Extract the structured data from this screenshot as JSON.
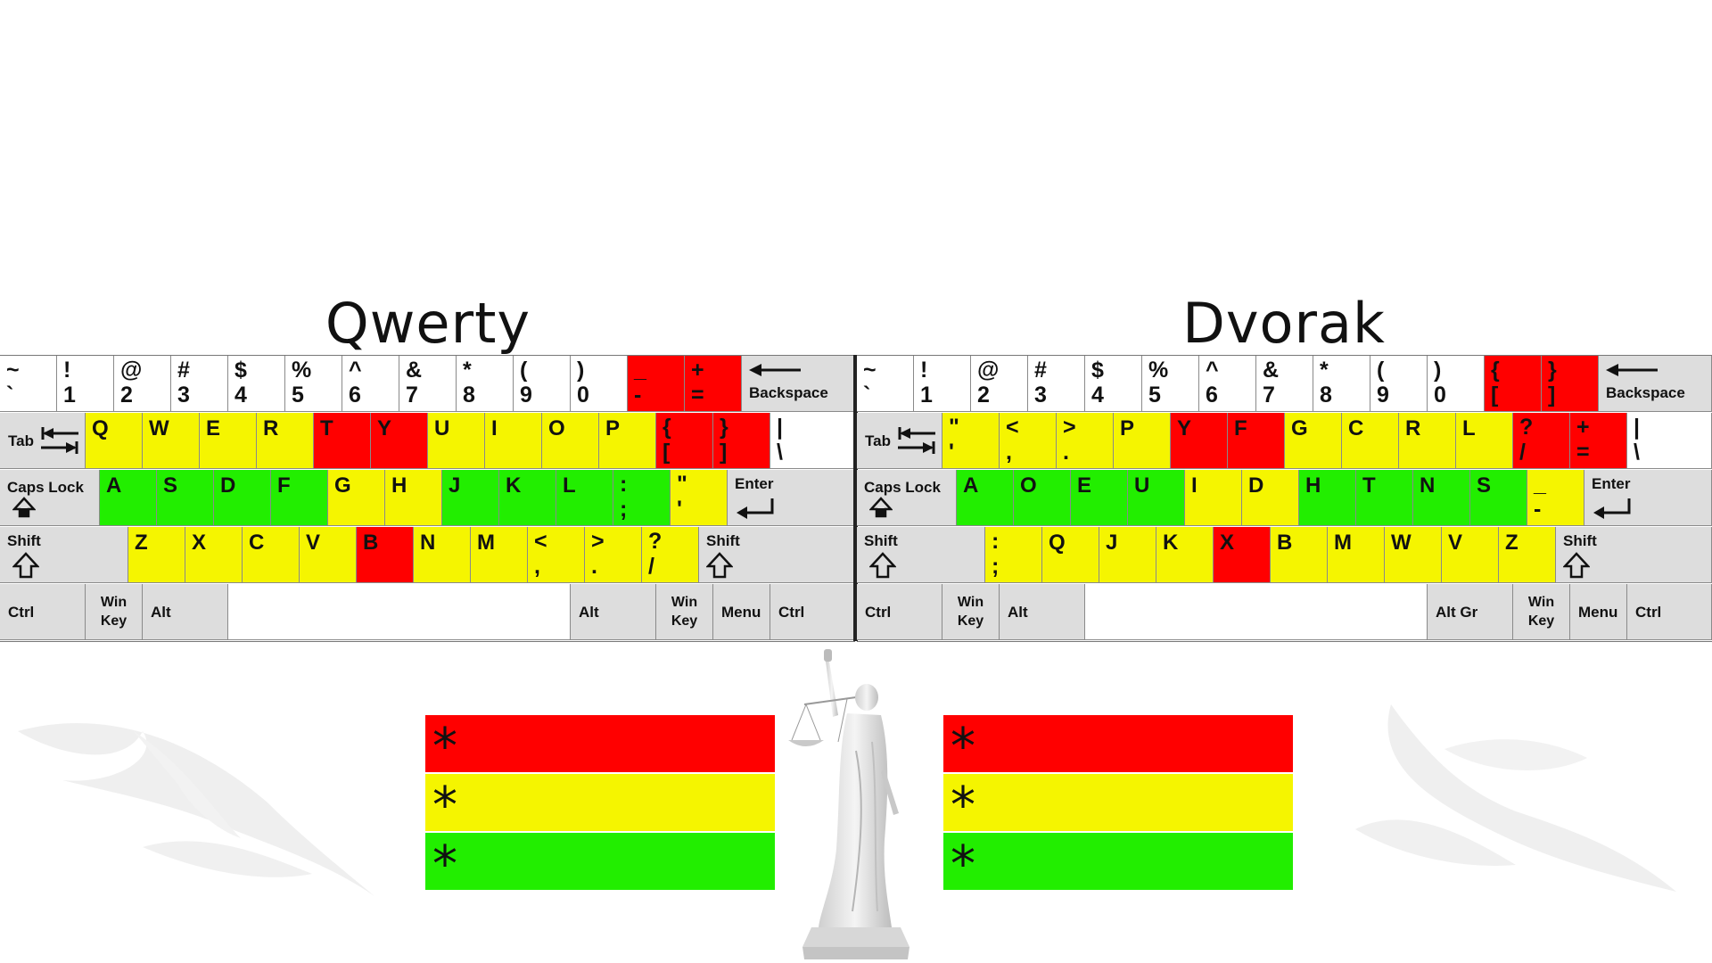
{
  "titles": {
    "left": "Qwerty",
    "right": "Dvorak"
  },
  "colors": {
    "red": "#ff0000",
    "yellow": "#f5f500",
    "green": "#22ee00",
    "gray": "#dddddd",
    "white": "#ffffff"
  },
  "qwerty": {
    "number_row": [
      {
        "top": "~",
        "bot": "`",
        "c": "w"
      },
      {
        "top": "!",
        "bot": "1",
        "c": "w"
      },
      {
        "top": "@",
        "bot": "2",
        "c": "w"
      },
      {
        "top": "#",
        "bot": "3",
        "c": "w"
      },
      {
        "top": "$",
        "bot": "4",
        "c": "w"
      },
      {
        "top": "%",
        "bot": "5",
        "c": "w"
      },
      {
        "top": "^",
        "bot": "6",
        "c": "w"
      },
      {
        "top": "&",
        "bot": "7",
        "c": "w"
      },
      {
        "top": "*",
        "bot": "8",
        "c": "w"
      },
      {
        "top": "(",
        "bot": "9",
        "c": "w"
      },
      {
        "top": ")",
        "bot": "0",
        "c": "w"
      },
      {
        "top": "_",
        "bot": "-",
        "c": "r"
      },
      {
        "top": "+",
        "bot": "=",
        "c": "r"
      }
    ],
    "top_row": [
      {
        "l": "Q",
        "c": "y"
      },
      {
        "l": "W",
        "c": "y"
      },
      {
        "l": "E",
        "c": "y"
      },
      {
        "l": "R",
        "c": "y"
      },
      {
        "l": "T",
        "c": "r"
      },
      {
        "l": "Y",
        "c": "r"
      },
      {
        "l": "U",
        "c": "y"
      },
      {
        "l": "I",
        "c": "y"
      },
      {
        "l": "O",
        "c": "y"
      },
      {
        "l": "P",
        "c": "y"
      }
    ],
    "top_row_sym": [
      {
        "top": "{",
        "bot": "[",
        "c": "r"
      },
      {
        "top": "}",
        "bot": "]",
        "c": "r"
      },
      {
        "top": "|",
        "bot": "\\",
        "c": "w"
      }
    ],
    "home_row": [
      {
        "l": "A",
        "c": "gr"
      },
      {
        "l": "S",
        "c": "gr"
      },
      {
        "l": "D",
        "c": "gr"
      },
      {
        "l": "F",
        "c": "gr"
      },
      {
        "l": "G",
        "c": "y"
      },
      {
        "l": "H",
        "c": "y"
      },
      {
        "l": "J",
        "c": "gr"
      },
      {
        "l": "K",
        "c": "gr"
      },
      {
        "l": "L",
        "c": "gr"
      }
    ],
    "home_row_sym": [
      {
        "top": ":",
        "bot": ";",
        "c": "gr"
      },
      {
        "top": "\"",
        "bot": "'",
        "c": "y"
      }
    ],
    "bottom_row": [
      {
        "l": "Z",
        "c": "y"
      },
      {
        "l": "X",
        "c": "y"
      },
      {
        "l": "C",
        "c": "y"
      },
      {
        "l": "V",
        "c": "y"
      },
      {
        "l": "B",
        "c": "r"
      },
      {
        "l": "N",
        "c": "y"
      },
      {
        "l": "M",
        "c": "y"
      }
    ],
    "bottom_row_sym": [
      {
        "top": "<",
        "bot": ",",
        "c": "y"
      },
      {
        "top": ">",
        "bot": ".",
        "c": "y"
      },
      {
        "top": "?",
        "bot": "/",
        "c": "y"
      }
    ],
    "space_row": {
      "ctrl": "Ctrl",
      "win": "Win",
      "win2": "Key",
      "alt": "Alt",
      "alt_right": "Alt",
      "win_r": "Win",
      "win_r2": "Key",
      "menu": "Menu",
      "ctrl_r": "Ctrl"
    }
  },
  "dvorak": {
    "number_row": [
      {
        "top": "~",
        "bot": "`",
        "c": "w"
      },
      {
        "top": "!",
        "bot": "1",
        "c": "w"
      },
      {
        "top": "@",
        "bot": "2",
        "c": "w"
      },
      {
        "top": "#",
        "bot": "3",
        "c": "w"
      },
      {
        "top": "$",
        "bot": "4",
        "c": "w"
      },
      {
        "top": "%",
        "bot": "5",
        "c": "w"
      },
      {
        "top": "^",
        "bot": "6",
        "c": "w"
      },
      {
        "top": "&",
        "bot": "7",
        "c": "w"
      },
      {
        "top": "*",
        "bot": "8",
        "c": "w"
      },
      {
        "top": "(",
        "bot": "9",
        "c": "w"
      },
      {
        "top": ")",
        "bot": "0",
        "c": "w"
      },
      {
        "top": "{",
        "bot": "[",
        "c": "r"
      },
      {
        "top": "}",
        "bot": "]",
        "c": "r"
      }
    ],
    "top_row_sym": [
      {
        "top": "\"",
        "bot": "'",
        "c": "y"
      },
      {
        "top": "<",
        "bot": ",",
        "c": "y"
      },
      {
        "top": ">",
        "bot": ".",
        "c": "y"
      }
    ],
    "top_row": [
      {
        "l": "P",
        "c": "y"
      },
      {
        "l": "Y",
        "c": "r"
      },
      {
        "l": "F",
        "c": "r"
      },
      {
        "l": "G",
        "c": "y"
      },
      {
        "l": "C",
        "c": "y"
      },
      {
        "l": "R",
        "c": "y"
      },
      {
        "l": "L",
        "c": "y"
      }
    ],
    "top_row_end": [
      {
        "top": "?",
        "bot": "/",
        "c": "r"
      },
      {
        "top": "+",
        "bot": "=",
        "c": "r"
      },
      {
        "top": "|",
        "bot": "\\",
        "c": "w"
      }
    ],
    "home_row": [
      {
        "l": "A",
        "c": "gr"
      },
      {
        "l": "O",
        "c": "gr"
      },
      {
        "l": "E",
        "c": "gr"
      },
      {
        "l": "U",
        "c": "gr"
      },
      {
        "l": "I",
        "c": "y"
      },
      {
        "l": "D",
        "c": "y"
      },
      {
        "l": "H",
        "c": "gr"
      },
      {
        "l": "T",
        "c": "gr"
      },
      {
        "l": "N",
        "c": "gr"
      },
      {
        "l": "S",
        "c": "gr"
      }
    ],
    "home_row_sym": [
      {
        "top": "_",
        "bot": "-",
        "c": "y"
      }
    ],
    "bottom_row_sym": [
      {
        "top": ":",
        "bot": ";",
        "c": "y"
      }
    ],
    "bottom_row": [
      {
        "l": "Q",
        "c": "y"
      },
      {
        "l": "J",
        "c": "y"
      },
      {
        "l": "K",
        "c": "y"
      },
      {
        "l": "X",
        "c": "r"
      },
      {
        "l": "B",
        "c": "y"
      },
      {
        "l": "M",
        "c": "y"
      },
      {
        "l": "W",
        "c": "y"
      },
      {
        "l": "V",
        "c": "y"
      },
      {
        "l": "Z",
        "c": "y"
      }
    ],
    "space_row": {
      "ctrl": "Ctrl",
      "win": "Win",
      "win2": "Key",
      "alt": "Alt",
      "alt_right": "Alt Gr",
      "win_r": "Win",
      "win_r2": "Key",
      "menu": "Menu",
      "ctrl_r": "Ctrl"
    }
  },
  "keys": {
    "backspace": "Backspace",
    "tab": "Tab",
    "caps_lock": "Caps Lock",
    "enter": "Enter",
    "shift": "Shift"
  },
  "icons": {
    "backspace": "backspace-arrow-icon",
    "tab": "tab-arrows-icon",
    "caps": "caps-lock-icon",
    "enter": "enter-arrow-icon",
    "shift": "shift-arrow-icon"
  },
  "legend": {
    "left": [
      {
        "symbol": "*",
        "color": "#ff0000"
      },
      {
        "symbol": "*",
        "color": "#f5f500"
      },
      {
        "symbol": "*",
        "color": "#22ee00"
      }
    ],
    "right": [
      {
        "symbol": "*",
        "color": "#ff0000"
      },
      {
        "symbol": "*",
        "color": "#f5f500"
      },
      {
        "symbol": "*",
        "color": "#22ee00"
      }
    ]
  }
}
